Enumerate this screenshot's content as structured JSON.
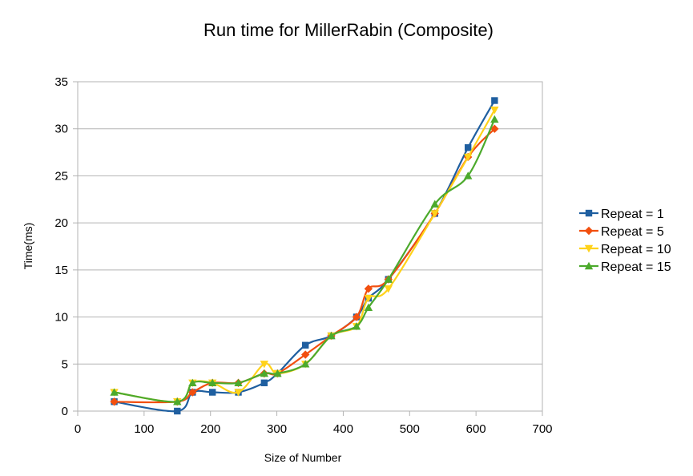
{
  "chart_data": {
    "type": "line",
    "title": "Run time for MillerRabin (Composite)",
    "xlabel": "Size of Number",
    "ylabel": "Time(ms)",
    "xlim": [
      0,
      700
    ],
    "ylim": [
      0,
      35
    ],
    "xticks": [
      0,
      100,
      200,
      300,
      400,
      500,
      600,
      700
    ],
    "yticks": [
      0,
      5,
      10,
      15,
      20,
      25,
      30,
      35
    ],
    "grid": "horizontal",
    "legend_position": "right",
    "series": [
      {
        "name": "Repeat = 1",
        "color": "#1f5fa0",
        "marker": "square",
        "x": [
          55,
          150,
          173,
          203,
          242,
          281,
          301,
          343,
          382,
          420,
          438,
          468,
          538,
          588,
          628
        ],
        "y": [
          1,
          0,
          2,
          2,
          2,
          3,
          4,
          7,
          8,
          10,
          12,
          14,
          21,
          28,
          33
        ]
      },
      {
        "name": "Repeat = 5",
        "color": "#f24f0f",
        "marker": "diamond",
        "x": [
          55,
          150,
          173,
          203,
          242,
          281,
          301,
          343,
          382,
          420,
          438,
          468,
          538,
          588,
          628
        ],
        "y": [
          1,
          1,
          2,
          3,
          3,
          4,
          4,
          6,
          8,
          10,
          13,
          14,
          21,
          27,
          30
        ]
      },
      {
        "name": "Repeat = 10",
        "color": "#ffd21a",
        "marker": "triangle-down",
        "x": [
          55,
          150,
          173,
          203,
          242,
          281,
          301,
          343,
          382,
          420,
          438,
          468,
          538,
          588,
          628
        ],
        "y": [
          2,
          1,
          3,
          3,
          2,
          5,
          4,
          5,
          8,
          9,
          12,
          13,
          21,
          27,
          32
        ]
      },
      {
        "name": "Repeat = 15",
        "color": "#4caa2c",
        "marker": "triangle-up",
        "x": [
          55,
          150,
          173,
          203,
          242,
          281,
          301,
          343,
          382,
          420,
          438,
          468,
          538,
          588,
          628
        ],
        "y": [
          2,
          1,
          3,
          3,
          3,
          4,
          4,
          5,
          8,
          9,
          11,
          14,
          22,
          25,
          31
        ]
      }
    ]
  }
}
